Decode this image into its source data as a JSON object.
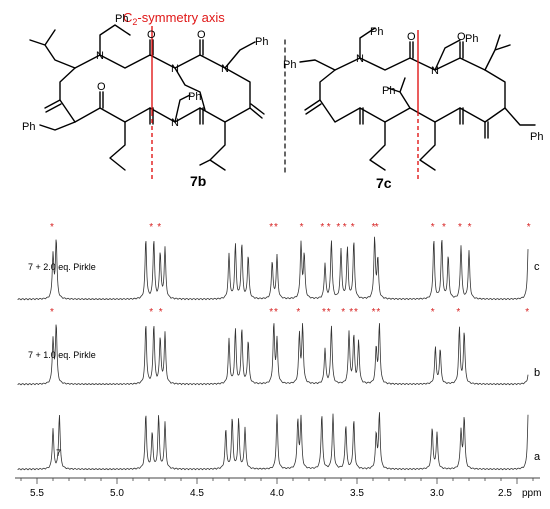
{
  "structures": {
    "axis_label": "C",
    "axis_label_sub": "2",
    "axis_label_rest": "-symmetry axis",
    "compound_b": "7b",
    "compound_c": "7c",
    "ph_label": "Ph",
    "o_label": "O",
    "n_label": "N"
  },
  "spectra": [
    {
      "trace": "c",
      "condition": "7 + 2.0 eq. Pirkle",
      "marked": true
    },
    {
      "trace": "b",
      "condition": "7 + 1.0 eq. Pirkle",
      "marked": true
    },
    {
      "trace": "a",
      "condition": "7",
      "marked": false
    }
  ],
  "axis": {
    "ticks": [
      "5.5",
      "5.0",
      "4.5",
      "4.0",
      "3.5",
      "3.0",
      "2.5"
    ],
    "unit": "ppm",
    "range_ppm": [
      5.62,
      2.32
    ]
  },
  "peaks_ppm": {
    "a": [
      5.4,
      5.36,
      4.82,
      4.78,
      4.74,
      4.7,
      4.32,
      4.28,
      4.24,
      4.2,
      4.0,
      3.87,
      3.85,
      3.72,
      3.65,
      3.57,
      3.52,
      3.38,
      3.36,
      3.03,
      3.0,
      2.85,
      2.83,
      2.43,
      2.41
    ],
    "b": [
      5.4,
      5.38,
      4.82,
      4.77,
      4.73,
      4.7,
      4.3,
      4.26,
      4.22,
      4.18,
      4.02,
      4.0,
      3.86,
      3.84,
      3.7,
      3.66,
      3.55,
      3.52,
      3.49,
      3.38,
      3.36,
      3.01,
      2.98,
      2.86,
      2.83,
      2.42
    ],
    "c": [
      5.4,
      5.38,
      4.82,
      4.77,
      4.73,
      4.7,
      4.3,
      4.26,
      4.22,
      4.18,
      4.03,
      4.0,
      3.85,
      3.83,
      3.7,
      3.66,
      3.6,
      3.56,
      3.52,
      3.39,
      3.37,
      3.02,
      2.97,
      2.93,
      2.85,
      2.8,
      2.43,
      2.41
    ]
  },
  "marked_ppm": {
    "b": [
      5.4,
      4.78,
      4.72,
      4.03,
      4.0,
      3.86,
      3.7,
      3.67,
      3.58,
      3.53,
      3.5,
      3.39,
      3.36,
      3.02,
      2.86,
      2.43
    ],
    "c": [
      5.4,
      4.78,
      4.73,
      4.03,
      4.0,
      3.84,
      3.71,
      3.67,
      3.61,
      3.57,
      3.52,
      3.39,
      3.37,
      3.02,
      2.95,
      2.85,
      2.79,
      2.42
    ]
  },
  "colors": {
    "marker": "#d62020",
    "axis_line": "#e01818",
    "trace": "#333333"
  }
}
